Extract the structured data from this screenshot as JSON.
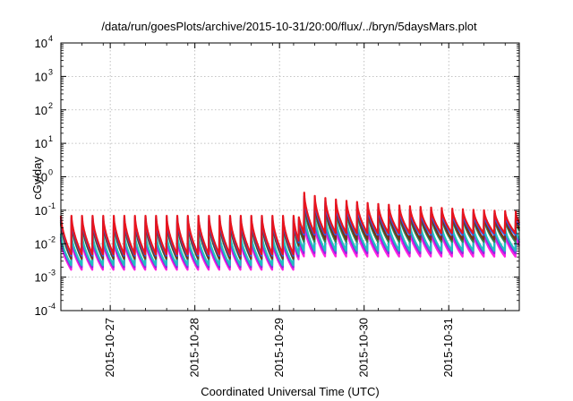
{
  "chart_data": {
    "type": "line",
    "title": "/data/run/goesPlots/archive/2015-10-31/20:00/flux/../bryn/5daysMars.plot",
    "xlabel": "Coordinated Universal Time (UTC)",
    "ylabel": "cGy/day",
    "x_range": [
      "2015-10-26T10:00",
      "2015-10-31T20:00"
    ],
    "ylim": [
      0.0001,
      10000
    ],
    "yscale": "log",
    "grid": true,
    "x_ticks": [
      "2015-10-27",
      "2015-10-28",
      "2015-10-29",
      "2015-10-30",
      "2015-10-31"
    ],
    "y_ticks": [
      {
        "value": 0.0001,
        "base": "10",
        "exp": "-4"
      },
      {
        "value": 0.001,
        "base": "10",
        "exp": "-3"
      },
      {
        "value": 0.01,
        "base": "10",
        "exp": "-2"
      },
      {
        "value": 0.1,
        "base": "10",
        "exp": "-1"
      },
      {
        "value": 1,
        "base": "10",
        "exp": "0"
      },
      {
        "value": 10,
        "base": "10",
        "exp": "1"
      },
      {
        "value": 100,
        "base": "10",
        "exp": "2"
      },
      {
        "value": 1000,
        "base": "10",
        "exp": "3"
      },
      {
        "value": 10000,
        "base": "10",
        "exp": "4"
      }
    ],
    "pattern": "sawtooth",
    "period_hours": 3,
    "event_start": "2015-10-29T05:30",
    "series": [
      {
        "color": "#e8141e",
        "base_peak": 0.068,
        "base_trough": 0.0046,
        "event_peak": 0.55,
        "end_peak": 0.09,
        "event_trough": 0.02
      },
      {
        "color": "#7a2f1a",
        "base_peak": 0.05,
        "base_trough": 0.0035,
        "event_peak": 0.35,
        "end_peak": 0.065,
        "event_trough": 0.013
      },
      {
        "color": "#2e8b57",
        "base_peak": 0.045,
        "base_trough": 0.0033,
        "event_peak": 0.28,
        "end_peak": 0.058,
        "event_trough": 0.011
      },
      {
        "color": "#1e5fff",
        "base_peak": 0.06,
        "base_trough": 0.0042,
        "event_peak": 0.42,
        "end_peak": 0.075,
        "event_trough": 0.018
      },
      {
        "color": "#20c0c0",
        "base_peak": 0.02,
        "base_trough": 0.0022,
        "event_peak": 0.14,
        "end_peak": 0.03,
        "event_trough": 0.006
      },
      {
        "color": "#8a2be2",
        "base_peak": 0.016,
        "base_trough": 0.0019,
        "event_peak": 0.1,
        "end_peak": 0.025,
        "event_trough": 0.005
      },
      {
        "color": "#ff20e0",
        "base_peak": 0.013,
        "base_trough": 0.0016,
        "event_peak": 0.06,
        "end_peak": 0.02,
        "event_trough": 0.004
      }
    ]
  }
}
